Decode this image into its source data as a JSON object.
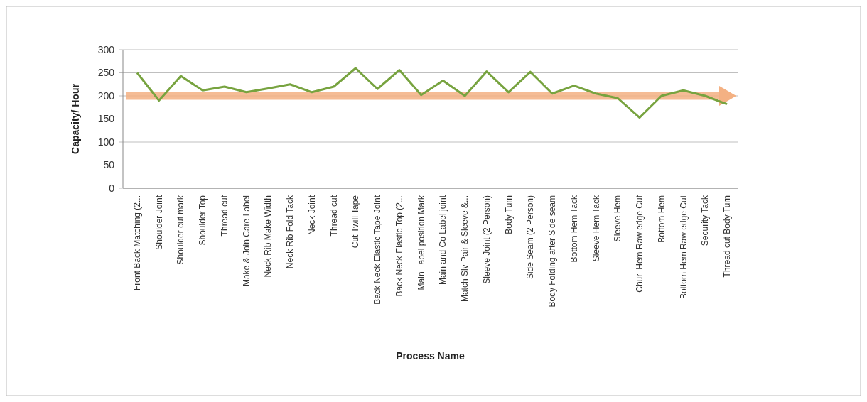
{
  "chart_data": {
    "type": "line",
    "xlabel": "Process Name",
    "ylabel": "Capacity/ Hour",
    "categories": [
      "Front Back Matching (2...",
      "Shoulder Joint",
      "Shoulder cut mark",
      "Shoulder Top",
      "Thread cut",
      "Make & Join Care Label",
      "Neck Rib Make Width",
      "Neck Rib Fold Tack",
      "Neck Joint",
      "Thread cut",
      "Cut Twill Tape",
      "Back Neck Elastic Tape Joint",
      "Back Neck Elastic Top (2...",
      "Main Label position Mark",
      "Main and Co Label joint",
      "Match Slv Pair & Sleeve &...",
      "Sleeve Joint (2 Person)",
      "Body Turn",
      "Side Seam (2 Person)",
      "Body Folding after Side seam",
      "Bottom Hem Tack",
      "Sleeve Hem Tack",
      "Sleeve Hem",
      "Churi Hem Raw edge Cut",
      "Bottom Hem",
      "Bottom Hem Raw edge Cut",
      "Security Tack",
      "Thread cut Body Turn"
    ],
    "series": [
      {
        "color": "#77a33f",
        "values": [
          250,
          190,
          243,
          212,
          220,
          208,
          216,
          225,
          208,
          220,
          260,
          215,
          256,
          202,
          233,
          200,
          253,
          208,
          252,
          205,
          222,
          205,
          195,
          153,
          200,
          212,
          200,
          182
        ]
      }
    ],
    "ylim": [
      0,
      300
    ],
    "yticks": [
      0,
      50,
      100,
      150,
      200,
      250,
      300
    ],
    "grid": "y",
    "ref_lines": [
      {
        "axis": "y",
        "value": 200,
        "color": "#f4b183"
      }
    ]
  }
}
